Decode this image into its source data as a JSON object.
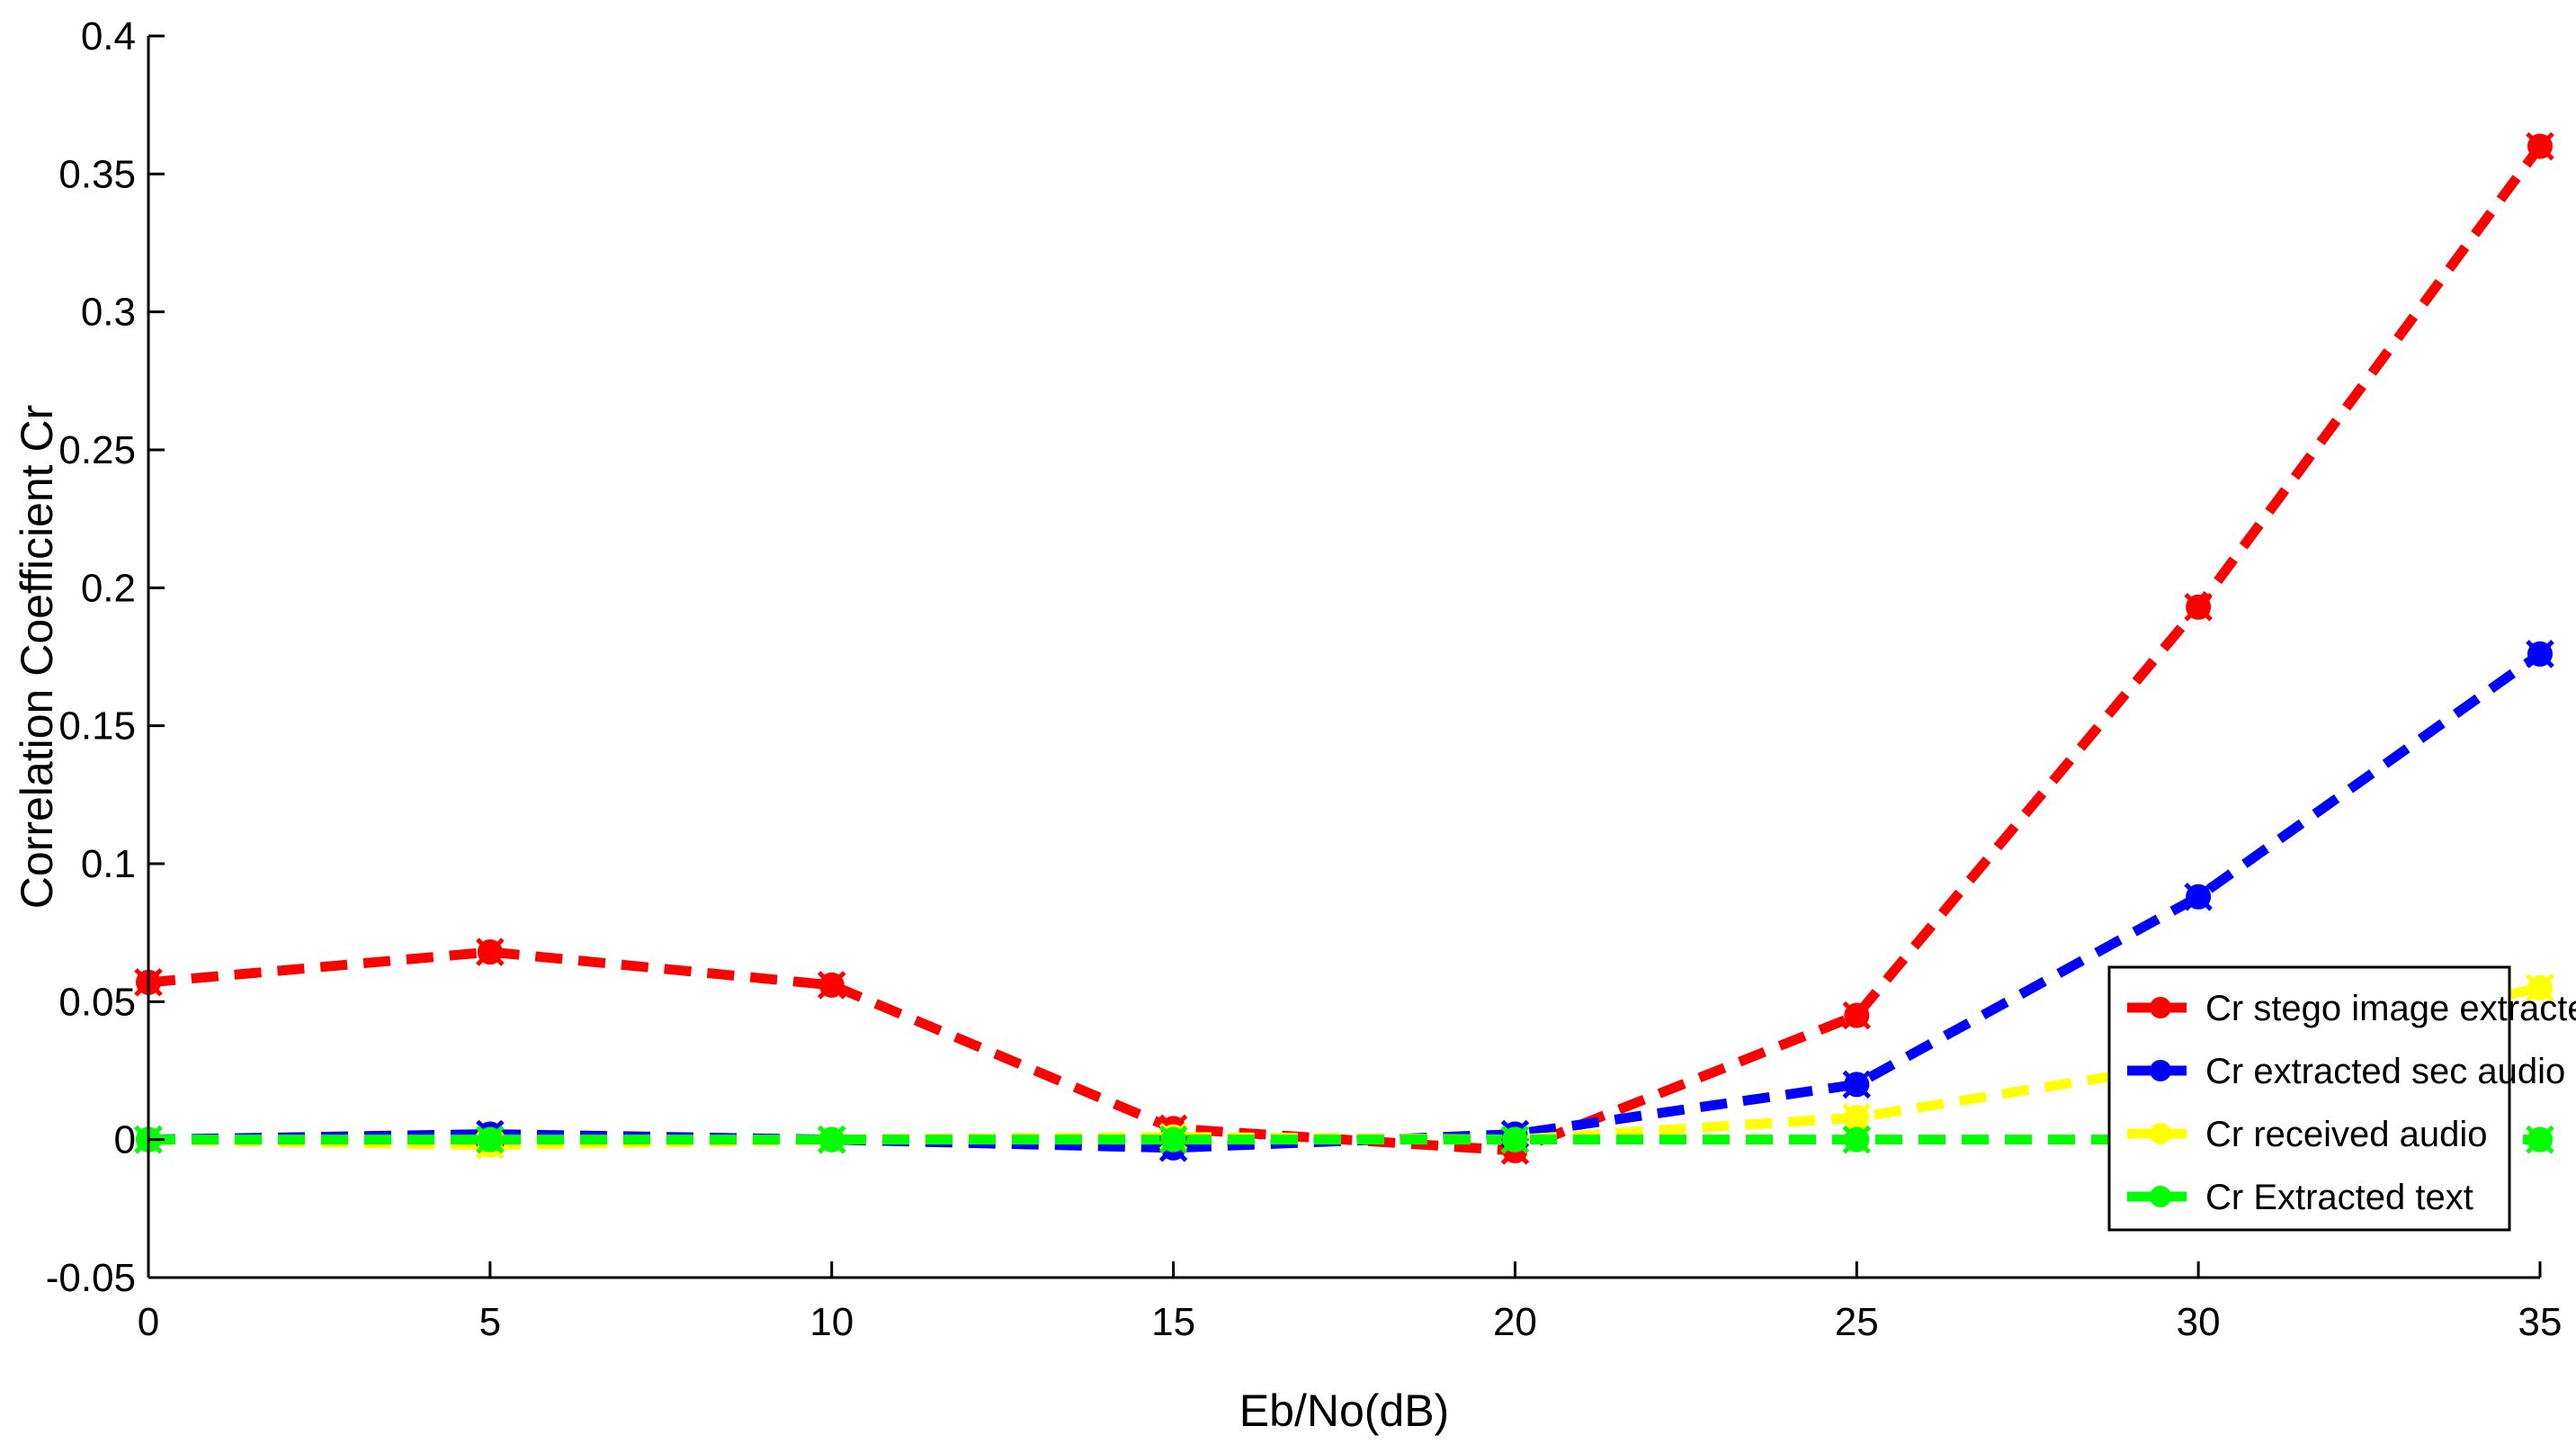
{
  "chart_data": {
    "type": "line",
    "title": "",
    "xlabel": "Eb/No(dB)",
    "ylabel": "Correlation Coefficient Cr",
    "x": [
      0,
      5,
      10,
      15,
      20,
      25,
      30,
      35
    ],
    "xlim": [
      0,
      35
    ],
    "ylim": [
      -0.05,
      0.4
    ],
    "xticks": [
      0,
      5,
      10,
      15,
      20,
      25,
      30,
      35
    ],
    "yticks": [
      -0.05,
      0,
      0.05,
      0.1,
      0.15,
      0.2,
      0.25,
      0.3,
      0.35,
      0.4
    ],
    "ytick_labels": [
      "-0.05",
      "0",
      "0.05",
      "0.1",
      "0.15",
      "0.2",
      "0.25",
      "0.3",
      "0.35",
      "0.4"
    ],
    "grid": false,
    "legend_position": "lower-right",
    "series": [
      {
        "name": "Cr stego image extracted",
        "color": "#ff0000",
        "values": [
          0.057,
          0.068,
          0.056,
          0.004,
          -0.004,
          0.045,
          0.193,
          0.36
        ]
      },
      {
        "name": "Cr extracted sec audio",
        "color": "#0000ff",
        "values": [
          0.0,
          0.002,
          0.0,
          -0.003,
          0.002,
          0.02,
          0.088,
          0.176
        ]
      },
      {
        "name": "Cr received audio",
        "color": "#ffff00",
        "values": [
          0.0,
          -0.002,
          0.0,
          0.001,
          0.0,
          0.008,
          0.028,
          0.055
        ]
      },
      {
        "name": "Cr Extracted text",
        "color": "#00ff00",
        "values": [
          0.0,
          0.0,
          0.0,
          0.0,
          0.0,
          0.0,
          0.0,
          0.0
        ]
      }
    ]
  }
}
